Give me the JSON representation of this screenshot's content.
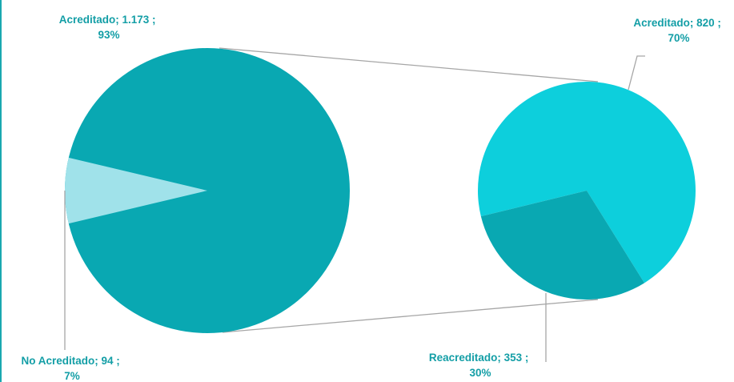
{
  "chart_data": {
    "type": "pie-of-pie",
    "main_pie": {
      "slices": [
        {
          "name": "Acreditado",
          "value": 1173,
          "value_text": "1.173",
          "percent": "93%",
          "color": "#09a8b2"
        },
        {
          "name": "No Acreditado",
          "value": 94,
          "value_text": "94",
          "percent": "7%",
          "color": "#a0e2ea"
        }
      ]
    },
    "secondary_pie": {
      "slices": [
        {
          "name": "Acreditado",
          "value": 820,
          "value_text": "820",
          "percent": "70%",
          "color": "#0dcfdc"
        },
        {
          "name": "Reacreditado",
          "value": 353,
          "value_text": "353",
          "percent": "30%",
          "color": "#09a8b2"
        }
      ]
    },
    "connector_color": "#a6a6a6",
    "label_color": "#139ea6"
  }
}
